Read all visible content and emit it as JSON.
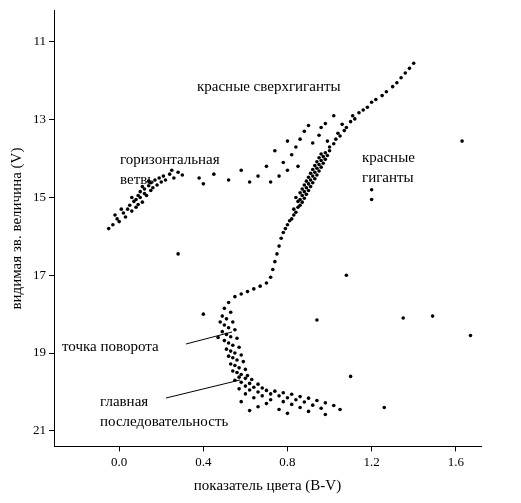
{
  "chart_data": {
    "type": "scatter",
    "x_label": "показатель цвета (B-V)",
    "y_label": "видимая зв. величина (V)",
    "annotations": [
      "красные сверхгиганты",
      "горизонтальная\nветвь",
      "красные\nгиганты",
      "точка поворота",
      "главная\nпоследовательность"
    ],
    "color": "#000000",
    "marker": "circle",
    "grid": false,
    "xlim": [
      -0.31,
      1.72
    ],
    "xticks": [
      {
        "value": 0,
        "label": "0.0"
      },
      0.4,
      0.8,
      1.2,
      1.6
    ],
    "ylim": [
      21.4,
      10.2
    ],
    "yticks": [
      11,
      13,
      15,
      17,
      19,
      21
    ],
    "x": [
      -0.05,
      -0.03,
      -0.01,
      0.0,
      0.02,
      0.03,
      0.04,
      0.05,
      0.06,
      0.07,
      0.08,
      0.08,
      0.09,
      0.1,
      0.1,
      0.11,
      0.12,
      0.12,
      0.13,
      0.14,
      0.15,
      0.15,
      0.16,
      0.17,
      0.18,
      0.19,
      0.2,
      0.21,
      0.22,
      0.24,
      0.26,
      0.28,
      0.3,
      0.06,
      0.11,
      0.01,
      0.14,
      -0.02,
      0.09,
      0.25,
      0.38,
      0.45,
      0.52,
      0.4,
      0.58,
      0.55,
      0.58,
      0.61,
      0.64,
      0.67,
      0.7,
      0.72,
      0.73,
      0.74,
      0.75,
      0.76,
      0.77,
      0.78,
      0.79,
      0.8,
      0.81,
      0.82,
      0.83,
      0.84,
      0.83,
      0.85,
      0.86,
      0.85,
      0.87,
      0.86,
      0.88,
      0.84,
      0.87,
      0.89,
      0.86,
      0.88,
      0.9,
      0.87,
      0.89,
      0.91,
      0.88,
      0.9,
      0.92,
      0.89,
      0.91,
      0.93,
      0.9,
      0.92,
      0.94,
      0.91,
      0.93,
      0.95,
      0.92,
      0.94,
      0.96,
      0.93,
      0.95,
      0.97,
      0.94,
      0.96,
      0.98,
      0.95,
      0.97,
      0.99,
      0.96,
      0.98,
      1.0,
      1.0,
      1.02,
      0.99,
      1.03,
      1.05,
      1.04,
      1.07,
      1.08,
      1.06,
      1.1,
      1.12,
      1.11,
      1.14,
      1.16,
      1.18,
      1.2,
      1.22,
      1.25,
      1.27,
      1.3,
      1.32,
      1.34,
      1.36,
      1.38,
      1.4,
      0.8,
      0.78,
      0.82,
      0.84,
      0.86,
      0.88,
      0.9,
      0.76,
      0.72,
      0.85,
      0.95,
      0.92,
      0.98,
      1.02,
      0.7,
      0.74,
      0.8,
      0.96,
      0.66,
      0.62,
      1.63,
      1.2,
      1.2,
      0.28,
      1.67,
      1.49,
      1.35,
      0.94,
      0.4,
      1.08,
      1.1,
      1.26,
      0.52,
      0.5,
      0.53,
      0.49,
      0.51,
      0.54,
      0.5,
      0.52,
      0.55,
      0.49,
      0.51,
      0.53,
      0.56,
      0.5,
      0.52,
      0.54,
      0.57,
      0.51,
      0.53,
      0.55,
      0.58,
      0.52,
      0.54,
      0.56,
      0.59,
      0.53,
      0.55,
      0.57,
      0.6,
      0.54,
      0.56,
      0.58,
      0.61,
      0.48,
      0.47,
      0.57,
      0.6,
      0.63,
      0.55,
      0.58,
      0.62,
      0.66,
      0.6,
      0.64,
      0.68,
      0.57,
      0.62,
      0.7,
      0.74,
      0.66,
      0.78,
      0.6,
      0.72,
      0.82,
      0.68,
      0.76,
      0.86,
      0.64,
      0.8,
      0.9,
      0.72,
      0.84,
      0.94,
      0.58,
      0.78,
      0.88,
      0.98,
      0.7,
      0.82,
      0.92,
      1.02,
      0.66,
      0.86,
      0.96,
      0.76,
      1.05,
      0.9,
      0.62,
      0.8,
      0.98
    ],
    "values": [
      15.8,
      15.7,
      15.55,
      15.62,
      15.4,
      15.5,
      15.3,
      15.2,
      15.35,
      15.1,
      15.05,
      15.25,
      14.95,
      15.0,
      14.85,
      15.12,
      14.9,
      14.78,
      14.95,
      14.7,
      14.82,
      14.62,
      14.75,
      14.55,
      14.68,
      14.5,
      14.6,
      14.45,
      14.55,
      14.4,
      14.5,
      14.35,
      14.42,
      15.0,
      14.72,
      15.3,
      14.58,
      15.45,
      15.18,
      14.3,
      14.5,
      14.4,
      14.55,
      14.65,
      14.3,
      17.55,
      17.48,
      17.42,
      17.35,
      17.28,
      17.2,
      17.05,
      16.85,
      16.65,
      16.45,
      16.25,
      16.05,
      15.9,
      15.8,
      15.7,
      15.6,
      15.55,
      15.45,
      15.38,
      15.3,
      15.25,
      15.2,
      15.1,
      15.12,
      15.05,
      15.02,
      15.0,
      14.95,
      14.92,
      14.88,
      14.85,
      14.82,
      14.78,
      14.75,
      14.72,
      14.68,
      14.65,
      14.62,
      14.58,
      14.55,
      14.52,
      14.48,
      14.45,
      14.42,
      14.38,
      14.35,
      14.32,
      14.28,
      14.25,
      14.22,
      14.18,
      14.15,
      14.12,
      14.08,
      14.05,
      14.02,
      13.98,
      13.95,
      13.92,
      13.88,
      13.85,
      13.8,
      13.7,
      13.62,
      13.55,
      13.5,
      13.42,
      13.35,
      13.28,
      13.2,
      13.12,
      13.05,
      12.98,
      12.9,
      12.82,
      12.75,
      12.68,
      12.55,
      12.48,
      12.38,
      12.28,
      12.15,
      12.05,
      11.92,
      11.8,
      11.68,
      11.55,
      14.3,
      14.1,
      13.9,
      13.7,
      13.5,
      13.3,
      13.15,
      14.45,
      14.6,
      14.2,
      13.4,
      13.6,
      13.1,
      12.9,
      14.2,
      13.8,
      13.55,
      13.2,
      14.45,
      14.6,
      13.55,
      14.8,
      15.05,
      16.45,
      18.55,
      18.05,
      18.1,
      18.15,
      18.0,
      17.0,
      19.6,
      20.4,
      17.7,
      17.85,
      17.95,
      18.05,
      18.12,
      18.2,
      18.28,
      18.35,
      18.4,
      18.45,
      18.52,
      18.58,
      18.62,
      18.68,
      18.74,
      18.8,
      18.85,
      18.9,
      18.95,
      19.0,
      19.05,
      19.08,
      19.12,
      19.18,
      19.22,
      19.28,
      19.32,
      19.38,
      19.42,
      19.46,
      19.5,
      19.55,
      19.58,
      18.2,
      18.6,
      19.62,
      19.65,
      19.68,
      19.7,
      19.75,
      19.78,
      19.8,
      19.85,
      19.88,
      19.9,
      19.92,
      19.95,
      19.96,
      19.98,
      20.0,
      20.02,
      20.05,
      20.05,
      20.06,
      20.1,
      20.1,
      20.12,
      20.15,
      20.15,
      20.16,
      20.2,
      20.2,
      20.22,
      20.25,
      20.25,
      20.26,
      20.28,
      20.3,
      20.32,
      20.34,
      20.35,
      20.38,
      20.4,
      20.42,
      20.45,
      20.45,
      20.5,
      20.48,
      20.55,
      20.58
    ]
  }
}
